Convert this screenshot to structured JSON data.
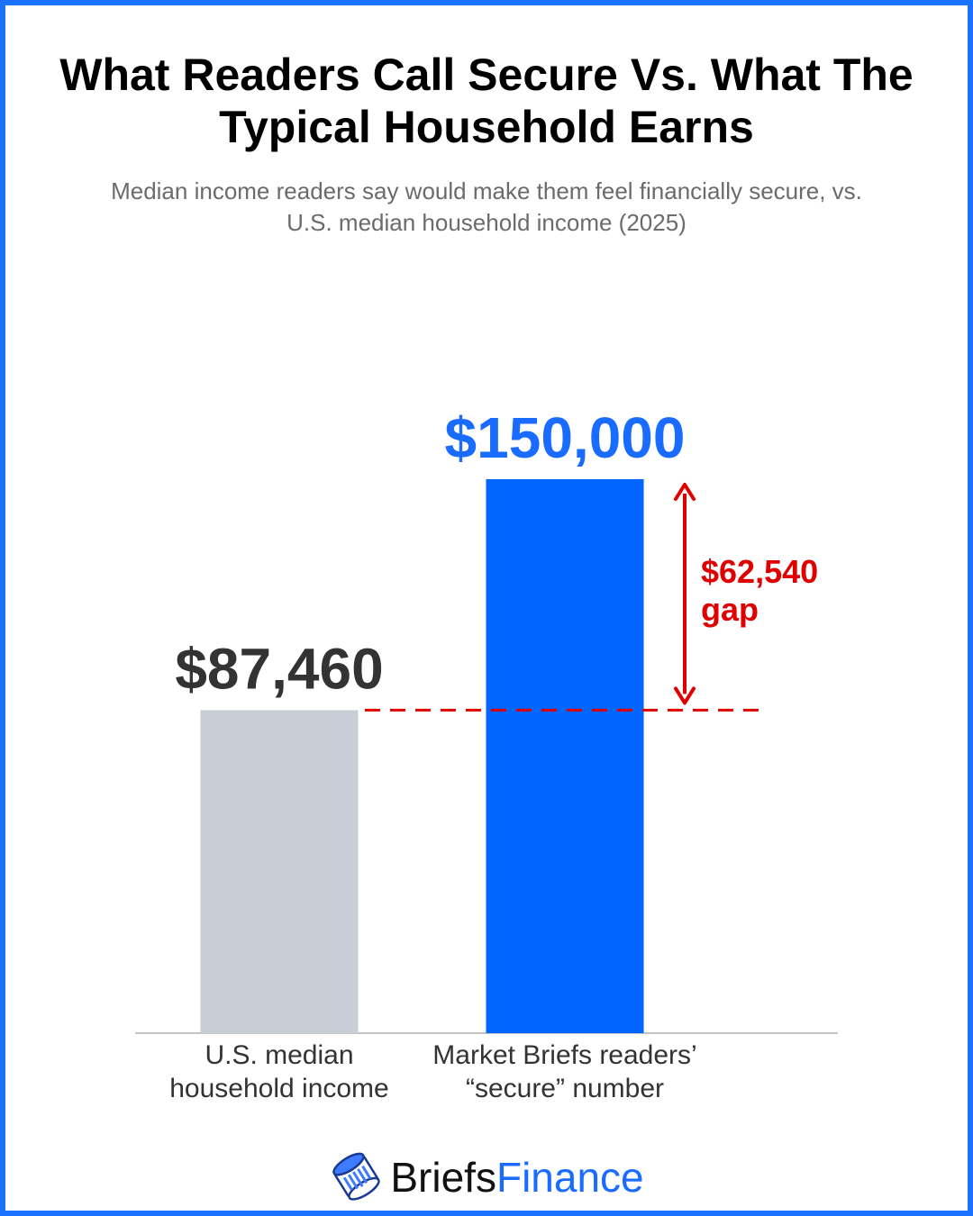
{
  "header": {
    "title": "What Readers Call Secure Vs. What The Typical Household Earns",
    "subtitle": "Median income readers say would make them feel financially secure, vs. U.S. median household income (2025)"
  },
  "chart_data": {
    "type": "bar",
    "categories": [
      [
        "U.S. median",
        "household income"
      ],
      [
        "Market Briefs readers’",
        "“secure” number"
      ]
    ],
    "values": [
      87460,
      150000
    ],
    "value_labels": [
      "$87,460",
      "$150,000"
    ],
    "bar_colors": [
      "#c9ced6",
      "#0066ff"
    ],
    "value_label_colors": [
      "#333333",
      "#1a6bff"
    ],
    "ylim": [
      0,
      150000
    ],
    "grid": false,
    "annotation": {
      "lines": [
        "$62,540",
        "gap"
      ],
      "from_value": 87460,
      "to_value": 150000,
      "color": "#e00000"
    }
  },
  "brand": {
    "name_part1": "Briefs",
    "name_part2": "Finance",
    "logo_icon": "coin-stack-icon"
  }
}
